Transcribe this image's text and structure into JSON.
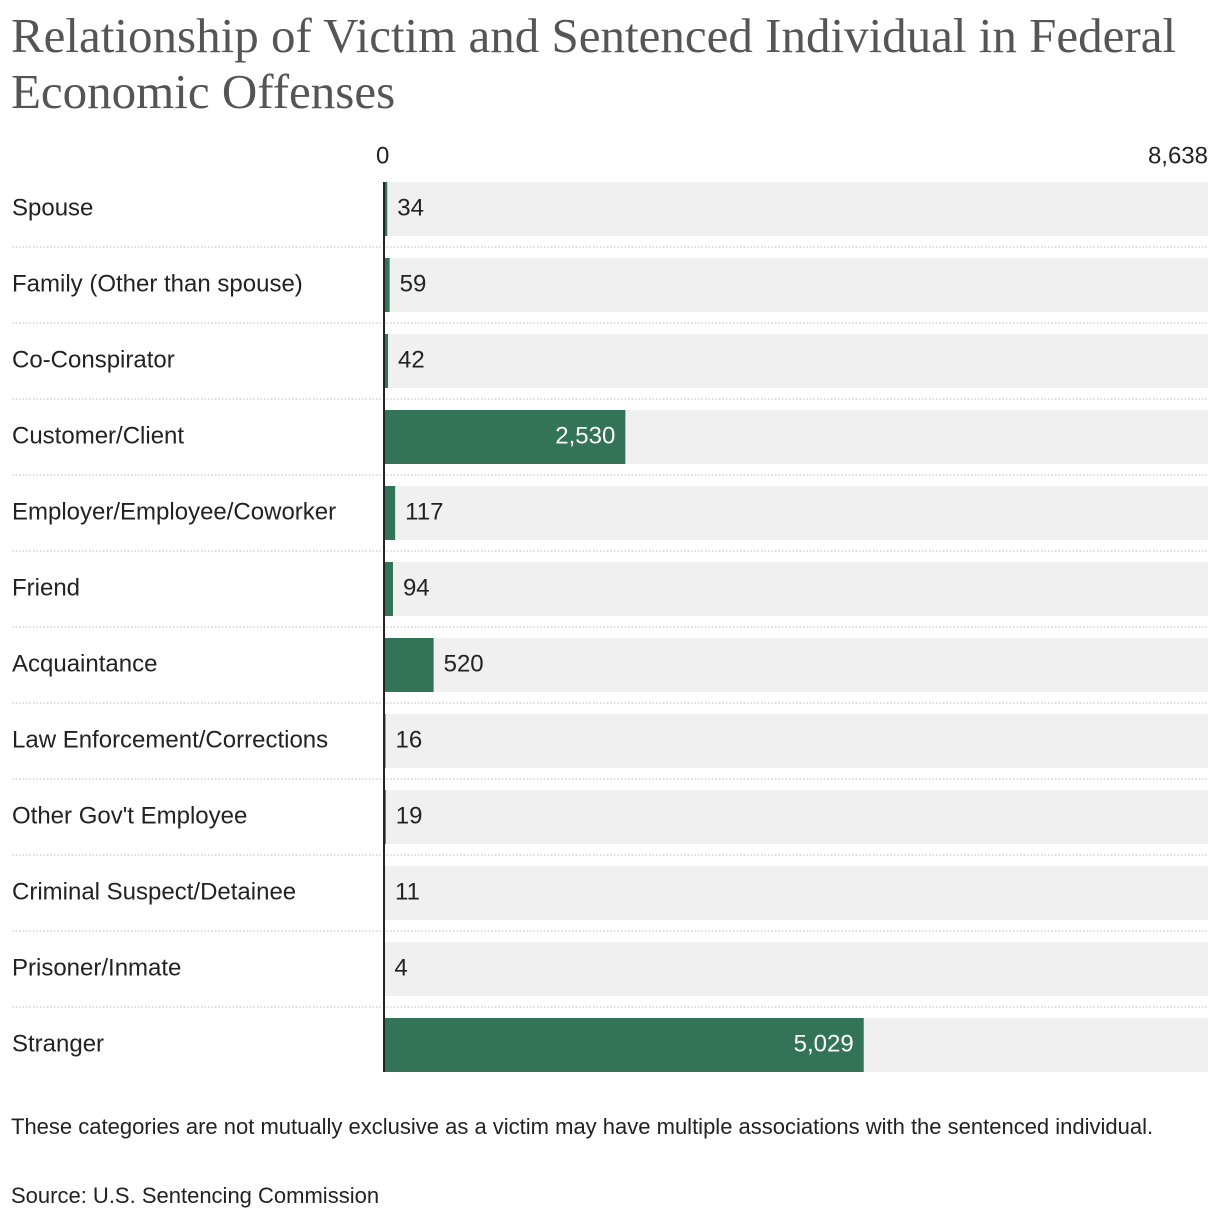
{
  "chart_data": {
    "type": "bar",
    "orientation": "horizontal",
    "title": "Relationship of Victim and Sentenced Individual in Federal Economic Offenses",
    "categories": [
      "Spouse",
      "Family (Other than spouse)",
      "Co-Conspirator",
      "Customer/Client",
      "Employer/Employee/Coworker",
      "Friend",
      "Acquaintance",
      "Law Enforcement/Corrections",
      "Other Gov't Employee",
      "Criminal Suspect/Detainee",
      "Prisoner/Inmate",
      "Stranger"
    ],
    "values": [
      34,
      59,
      42,
      2530,
      117,
      94,
      520,
      16,
      19,
      11,
      4,
      5029
    ],
    "value_labels": [
      "34",
      "59",
      "42",
      "2,530",
      "117",
      "94",
      "520",
      "16",
      "19",
      "11",
      "4",
      "5,029"
    ],
    "color": "#337357",
    "xlim": [
      0,
      8638
    ],
    "xticks": [
      0,
      {
        "value": 8638,
        "label": "8,638"
      }
    ],
    "note": "These categories are not mutually exclusive as a victim may have multiple associations with the sentenced individual.",
    "source": "Source: U.S. Sentencing Commission"
  }
}
